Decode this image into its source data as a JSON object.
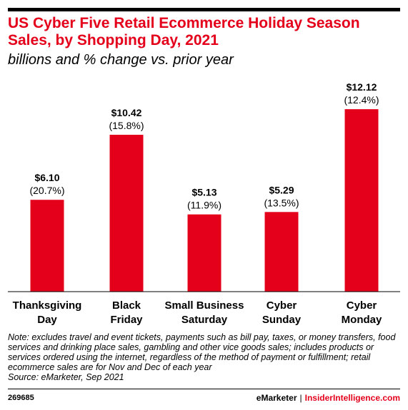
{
  "header": {
    "title": "US Cyber Five Retail Ecommerce Holiday Season Sales, by Shopping Day, 2021",
    "subtitle": "billions and % change vs. prior year"
  },
  "chart_data": {
    "type": "bar",
    "categories": [
      [
        "Thanksgiving",
        "Day"
      ],
      [
        "Black",
        "Friday"
      ],
      [
        "Small Business",
        "Saturday"
      ],
      [
        "Cyber",
        "Sunday"
      ],
      [
        "Cyber",
        "Monday"
      ]
    ],
    "values": [
      6.1,
      10.42,
      5.13,
      5.29,
      12.12
    ],
    "value_labels": [
      "$6.10",
      "$10.42",
      "$5.13",
      "$5.29",
      "$12.12"
    ],
    "change_labels": [
      "(20.7%)",
      "(15.8%)",
      "(11.9%)",
      "(13.5%)",
      "(12.4%)"
    ],
    "ylim": [
      0,
      12.6
    ],
    "grid": false,
    "colors": {
      "bar": "#e4001b"
    }
  },
  "notes": {
    "text": "Note: excludes travel and event tickets, payments such as bill pay, taxes, or money transfers, food services and drinking place sales, gambling and other vice goods sales; includes products or services ordered using the internet, regardless of the method of payment or fulfillment; retail ecommerce sales are for Nov and Dec of each year",
    "source": "Source: eMarketer, Sep 2021"
  },
  "footer": {
    "chart_id": "269685",
    "brand": "eMarketer",
    "separator": "|",
    "site": "InsiderIntelligence.com"
  }
}
